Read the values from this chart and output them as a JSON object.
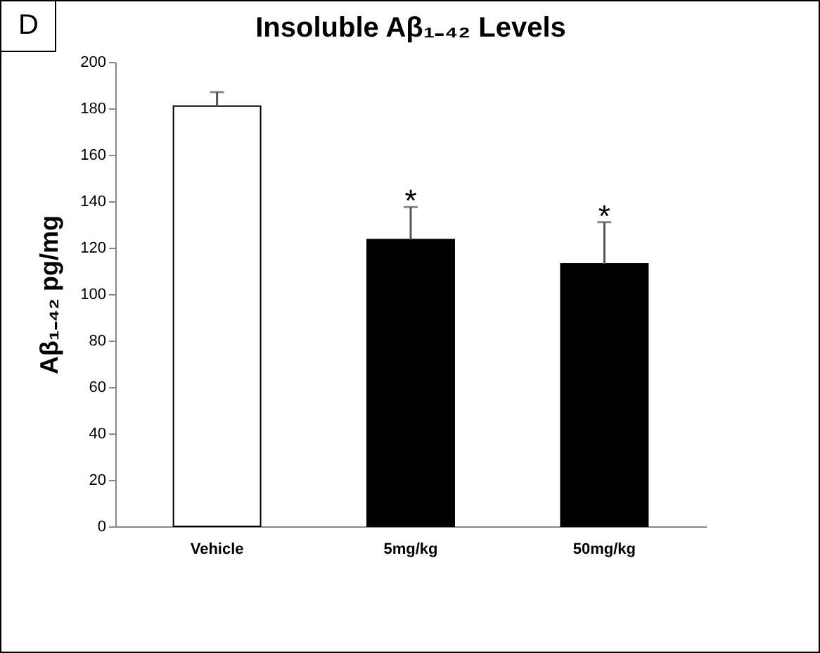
{
  "chart_data": {
    "type": "bar",
    "title": "Insoluble Aβ₁₋₄₂ Levels",
    "ylabel": "Aβ₁₋₄₂ pg/mg",
    "categories": [
      "Vehicle",
      "5mg/kg",
      "50mg/kg"
    ],
    "values": [
      181,
      123.5,
      113
    ],
    "colors": [
      "#ffffff",
      "#000000",
      "#000000"
    ],
    "errors": [
      6,
      14,
      18
    ],
    "ylim": [
      0,
      200
    ],
    "yticks": [
      0,
      20,
      40,
      60,
      80,
      100,
      120,
      140,
      160,
      180,
      200
    ],
    "grid": false,
    "annotations": [
      "D",
      {
        "text": "*",
        "x": "5mg/kg",
        "y": 137.5
      },
      {
        "text": "*",
        "x": "50mg/kg",
        "y": 131
      }
    ]
  }
}
